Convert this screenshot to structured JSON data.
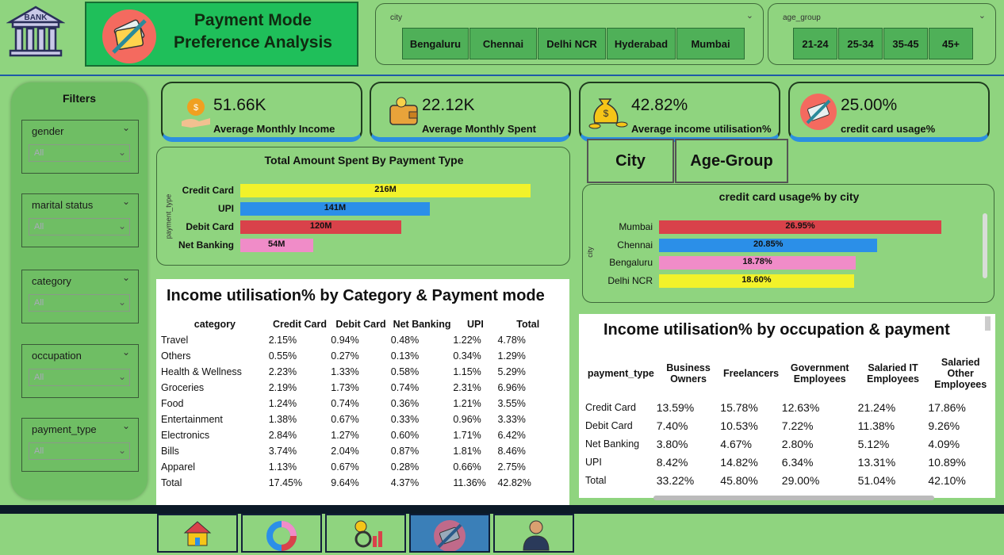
{
  "header": {
    "logo_text": "BANK",
    "title_line1": "Payment Mode",
    "title_line2": "Preference Analysis"
  },
  "city_slicer": {
    "label": "city",
    "options": [
      "Bengaluru",
      "Chennai",
      "Delhi NCR",
      "Hyderabad",
      "Mumbai"
    ]
  },
  "age_slicer": {
    "label": "age_group",
    "options": [
      "21-24",
      "25-34",
      "35-45",
      "45+"
    ]
  },
  "filters": {
    "title": "Filters",
    "items": [
      {
        "label": "gender",
        "value": "All"
      },
      {
        "label": "marital status",
        "value": "All"
      },
      {
        "label": "category",
        "value": "All"
      },
      {
        "label": "occupation",
        "value": "All"
      },
      {
        "label": "payment_type",
        "value": "All"
      }
    ]
  },
  "kpis": [
    {
      "value": "51.66K",
      "label": "Average Monthly Income",
      "icon": "money-bag-hand-icon"
    },
    {
      "value": "22.12K",
      "label": "Average Monthly Spent",
      "icon": "wallet-icon"
    },
    {
      "value": "42.82%",
      "label": "Average income utilisation%",
      "icon": "coins-bag-icon"
    },
    {
      "value": "25.00%",
      "label": "credit card usage%",
      "icon": "credit-card-icon"
    }
  ],
  "toggle_buttons": {
    "city": "City",
    "age_group": "Age-Group"
  },
  "chart_spent": {
    "chart_data": {
      "type": "bar",
      "title": "Total Amount Spent By Payment Type",
      "ylabel": "payment_type",
      "categories": [
        "Credit Card",
        "UPI",
        "Debit Card",
        "Net Banking"
      ],
      "values": [
        216,
        141,
        120,
        54
      ],
      "value_labels": [
        "216M",
        "141M",
        "120M",
        "54M"
      ],
      "colors": [
        "#f2f22a",
        "#2b8fe8",
        "#d9424a",
        "#f08cc8"
      ]
    }
  },
  "chart_cc_city": {
    "chart_data": {
      "type": "bar",
      "title": "credit card usage% by city",
      "ylabel": "city",
      "categories": [
        "Mumbai",
        "Chennai",
        "Bengaluru",
        "Delhi NCR"
      ],
      "values": [
        26.95,
        20.85,
        18.78,
        18.6
      ],
      "value_labels": [
        "26.95%",
        "20.85%",
        "18.78%",
        "18.60%"
      ],
      "colors": [
        "#d9424a",
        "#2b8fe8",
        "#f08cc8",
        "#f2f22a"
      ]
    }
  },
  "table_category": {
    "title": "Income utilisation% by Category & Payment mode",
    "columns": [
      "category",
      "Credit Card",
      "Debit Card",
      "Net Banking",
      "UPI",
      "Total"
    ],
    "rows": [
      [
        "Travel",
        "2.15%",
        "0.94%",
        "0.48%",
        "1.22%",
        "4.78%"
      ],
      [
        "Others",
        "0.55%",
        "0.27%",
        "0.13%",
        "0.34%",
        "1.29%"
      ],
      [
        "Health & Wellness",
        "2.23%",
        "1.33%",
        "0.58%",
        "1.15%",
        "5.29%"
      ],
      [
        "Groceries",
        "2.19%",
        "1.73%",
        "0.74%",
        "2.31%",
        "6.96%"
      ],
      [
        "Food",
        "1.24%",
        "0.74%",
        "0.36%",
        "1.21%",
        "3.55%"
      ],
      [
        "Entertainment",
        "1.38%",
        "0.67%",
        "0.33%",
        "0.96%",
        "3.33%"
      ],
      [
        "Electronics",
        "2.84%",
        "1.27%",
        "0.60%",
        "1.71%",
        "6.42%"
      ],
      [
        "Bills",
        "3.74%",
        "2.04%",
        "0.87%",
        "1.81%",
        "8.46%"
      ],
      [
        "Apparel",
        "1.13%",
        "0.67%",
        "0.28%",
        "0.66%",
        "2.75%"
      ]
    ],
    "total_row": [
      "Total",
      "17.45%",
      "9.64%",
      "4.37%",
      "11.36%",
      "42.82%"
    ]
  },
  "table_occupation": {
    "title": "Income utilisation% by occupation & payment",
    "columns": [
      "payment_type",
      "Business Owners",
      "Freelancers",
      "Government Employees",
      "Salaried IT Employees",
      "Salaried Other Employees"
    ],
    "rows": [
      [
        "Credit Card",
        "13.59%",
        "15.78%",
        "12.63%",
        "21.24%",
        "17.86%"
      ],
      [
        "Debit Card",
        "7.40%",
        "10.53%",
        "7.22%",
        "11.38%",
        "9.26%"
      ],
      [
        "Net Banking",
        "3.80%",
        "4.67%",
        "2.80%",
        "5.12%",
        "4.09%"
      ],
      [
        "UPI",
        "8.42%",
        "14.82%",
        "6.34%",
        "13.31%",
        "10.89%"
      ]
    ],
    "total_row": [
      "Total",
      "33.22%",
      "45.80%",
      "29.00%",
      "51.04%",
      "42.10%"
    ]
  },
  "nav": {
    "buttons": [
      "home-icon",
      "donut-chart-icon",
      "bulb-chart-icon",
      "credit-card-icon",
      "person-icon"
    ],
    "active_index": 3
  }
}
